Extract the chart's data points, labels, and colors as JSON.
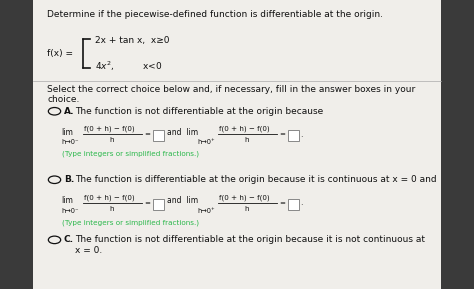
{
  "bg_color": "#3a3a3a",
  "paper_color": "#f0eeea",
  "title": "Determine if the piecewise-defined function is differentiable at the origin.",
  "select_text1": "Select the correct choice below and, if necessary, fill in the answer boxes in your",
  "select_text2": "choice.",
  "option_A_text": "The function is not differentiable at the origin because",
  "option_B_text": "The function is differentiable at the origin because it is continuous at x = 0 and",
  "option_C_text1": "The function is not differentiable at the origin because it is not continuous at",
  "option_C_text2": "x = 0.",
  "type_note": "(Type integers or simplified fractions.)",
  "green_color": "#2db84d",
  "text_color": "#111111",
  "bold_color": "#000000"
}
